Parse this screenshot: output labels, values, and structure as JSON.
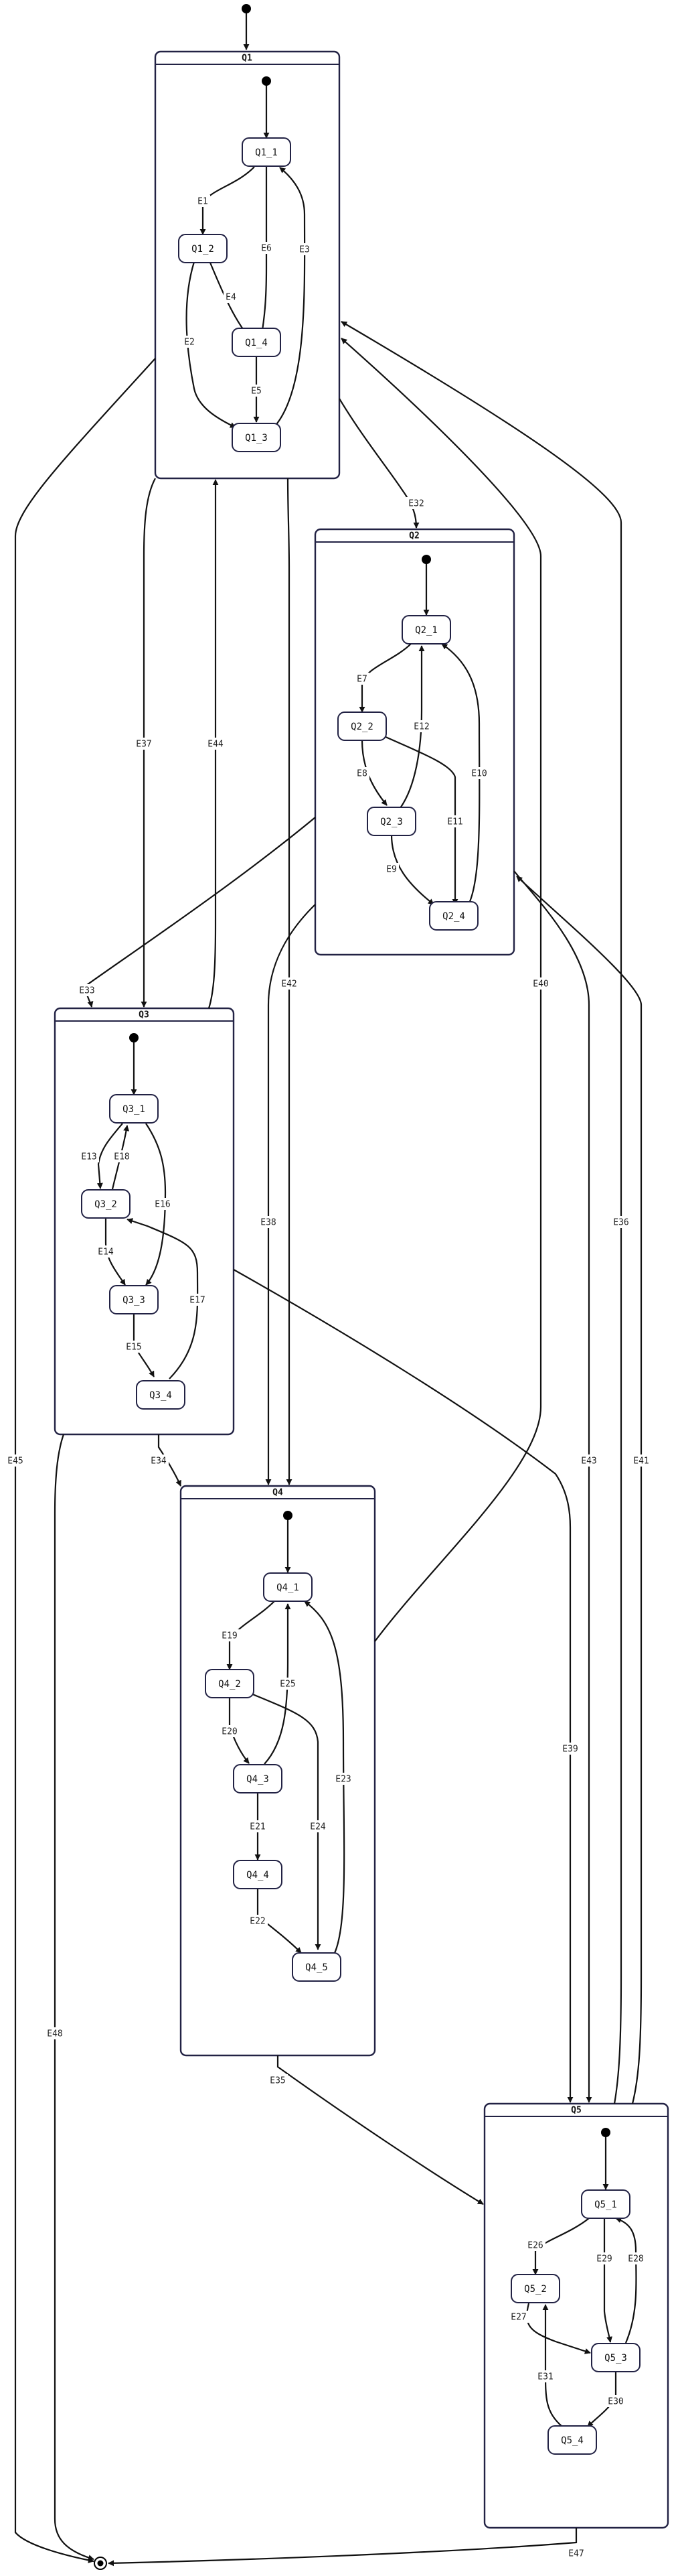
{
  "diagram": {
    "composites": [
      {
        "id": "Q1",
        "title": "Q1"
      },
      {
        "id": "Q2",
        "title": "Q2"
      },
      {
        "id": "Q3",
        "title": "Q3"
      },
      {
        "id": "Q4",
        "title": "Q4"
      },
      {
        "id": "Q5",
        "title": "Q5"
      }
    ],
    "states": [
      {
        "id": "Q1_1",
        "label": "Q1_1"
      },
      {
        "id": "Q1_2",
        "label": "Q1_2"
      },
      {
        "id": "Q1_3",
        "label": "Q1_3"
      },
      {
        "id": "Q1_4",
        "label": "Q1_4"
      },
      {
        "id": "Q2_1",
        "label": "Q2_1"
      },
      {
        "id": "Q2_2",
        "label": "Q2_2"
      },
      {
        "id": "Q2_3",
        "label": "Q2_3"
      },
      {
        "id": "Q2_4",
        "label": "Q2_4"
      },
      {
        "id": "Q3_1",
        "label": "Q3_1"
      },
      {
        "id": "Q3_2",
        "label": "Q3_2"
      },
      {
        "id": "Q3_3",
        "label": "Q3_3"
      },
      {
        "id": "Q3_4",
        "label": "Q3_4"
      },
      {
        "id": "Q4_1",
        "label": "Q4_1"
      },
      {
        "id": "Q4_2",
        "label": "Q4_2"
      },
      {
        "id": "Q4_3",
        "label": "Q4_3"
      },
      {
        "id": "Q4_4",
        "label": "Q4_4"
      },
      {
        "id": "Q4_5",
        "label": "Q4_5"
      },
      {
        "id": "Q5_1",
        "label": "Q5_1"
      },
      {
        "id": "Q5_2",
        "label": "Q5_2"
      },
      {
        "id": "Q5_3",
        "label": "Q5_3"
      },
      {
        "id": "Q5_4",
        "label": "Q5_4"
      }
    ],
    "transitions": [
      {
        "id": "E1",
        "label": "E1",
        "from": "Q1_1",
        "to": "Q1_2"
      },
      {
        "id": "E2",
        "label": "E2",
        "from": "Q1_2",
        "to": "Q1_3"
      },
      {
        "id": "E3",
        "label": "E3",
        "from": "Q1_3",
        "to": "Q1_1"
      },
      {
        "id": "E4",
        "label": "E4",
        "from": "Q1_2",
        "to": "Q1_4"
      },
      {
        "id": "E5",
        "label": "E5",
        "from": "Q1_4",
        "to": "Q1_3"
      },
      {
        "id": "E6",
        "label": "E6",
        "from": "Q1_1",
        "to": "Q1_4"
      },
      {
        "id": "E7",
        "label": "E7",
        "from": "Q2_1",
        "to": "Q2_2"
      },
      {
        "id": "E8",
        "label": "E8",
        "from": "Q2_2",
        "to": "Q2_3"
      },
      {
        "id": "E9",
        "label": "E9",
        "from": "Q2_3",
        "to": "Q2_4"
      },
      {
        "id": "E10",
        "label": "E10",
        "from": "Q2_4",
        "to": "Q2_1"
      },
      {
        "id": "E11",
        "label": "E11",
        "from": "Q2_2",
        "to": "Q2_4"
      },
      {
        "id": "E12",
        "label": "E12",
        "from": "Q2_3",
        "to": "Q2_1"
      },
      {
        "id": "E13",
        "label": "E13",
        "from": "Q3_1",
        "to": "Q3_2"
      },
      {
        "id": "E14",
        "label": "E14",
        "from": "Q3_2",
        "to": "Q3_3"
      },
      {
        "id": "E15",
        "label": "E15",
        "from": "Q3_3",
        "to": "Q3_4"
      },
      {
        "id": "E16",
        "label": "E16",
        "from": "Q3_1",
        "to": "Q3_3"
      },
      {
        "id": "E17",
        "label": "E17",
        "from": "Q3_4",
        "to": "Q3_2"
      },
      {
        "id": "E18",
        "label": "E18",
        "from": "Q3_2",
        "to": "Q3_1"
      },
      {
        "id": "E19",
        "label": "E19",
        "from": "Q4_1",
        "to": "Q4_2"
      },
      {
        "id": "E20",
        "label": "E20",
        "from": "Q4_2",
        "to": "Q4_3"
      },
      {
        "id": "E21",
        "label": "E21",
        "from": "Q4_3",
        "to": "Q4_4"
      },
      {
        "id": "E22",
        "label": "E22",
        "from": "Q4_4",
        "to": "Q4_5"
      },
      {
        "id": "E23",
        "label": "E23",
        "from": "Q4_5",
        "to": "Q4_1"
      },
      {
        "id": "E24",
        "label": "E24",
        "from": "Q4_2",
        "to": "Q4_5"
      },
      {
        "id": "E25",
        "label": "E25",
        "from": "Q4_3",
        "to": "Q4_1"
      },
      {
        "id": "E26",
        "label": "E26",
        "from": "Q5_1",
        "to": "Q5_2"
      },
      {
        "id": "E27",
        "label": "E27",
        "from": "Q5_2",
        "to": "Q5_3"
      },
      {
        "id": "E28",
        "label": "E28",
        "from": "Q5_3",
        "to": "Q5_1"
      },
      {
        "id": "E29",
        "label": "E29",
        "from": "Q5_1",
        "to": "Q5_3"
      },
      {
        "id": "E30",
        "label": "E30",
        "from": "Q5_3",
        "to": "Q5_4"
      },
      {
        "id": "E31",
        "label": "E31",
        "from": "Q5_4",
        "to": "Q5_2"
      },
      {
        "id": "E32",
        "label": "E32",
        "from": "Q1",
        "to": "Q2"
      },
      {
        "id": "E33",
        "label": "E33",
        "from": "Q2",
        "to": "Q3"
      },
      {
        "id": "E34",
        "label": "E34",
        "from": "Q3",
        "to": "Q4"
      },
      {
        "id": "E35",
        "label": "E35",
        "from": "Q4",
        "to": "Q5"
      },
      {
        "id": "E36",
        "label": "E36",
        "from": "Q5",
        "to": "Q1"
      },
      {
        "id": "E37",
        "label": "E37",
        "from": "Q1",
        "to": "Q3"
      },
      {
        "id": "E38",
        "label": "E38",
        "from": "Q2",
        "to": "Q4"
      },
      {
        "id": "E39",
        "label": "E39",
        "from": "Q3",
        "to": "Q5"
      },
      {
        "id": "E40",
        "label": "E40",
        "from": "Q4",
        "to": "Q1"
      },
      {
        "id": "E41",
        "label": "E41",
        "from": "Q5",
        "to": "Q2"
      },
      {
        "id": "E42",
        "label": "E42",
        "from": "Q1",
        "to": "Q4"
      },
      {
        "id": "E43",
        "label": "E43",
        "from": "Q2",
        "to": "Q5"
      },
      {
        "id": "E44",
        "label": "E44",
        "from": "Q3",
        "to": "Q1"
      },
      {
        "id": "E45",
        "label": "E45",
        "from": "Q1",
        "to": "final"
      },
      {
        "id": "E47",
        "label": "E47",
        "from": "Q5",
        "to": "final"
      },
      {
        "id": "E48",
        "label": "E48",
        "from": "Q3",
        "to": "final"
      }
    ]
  }
}
